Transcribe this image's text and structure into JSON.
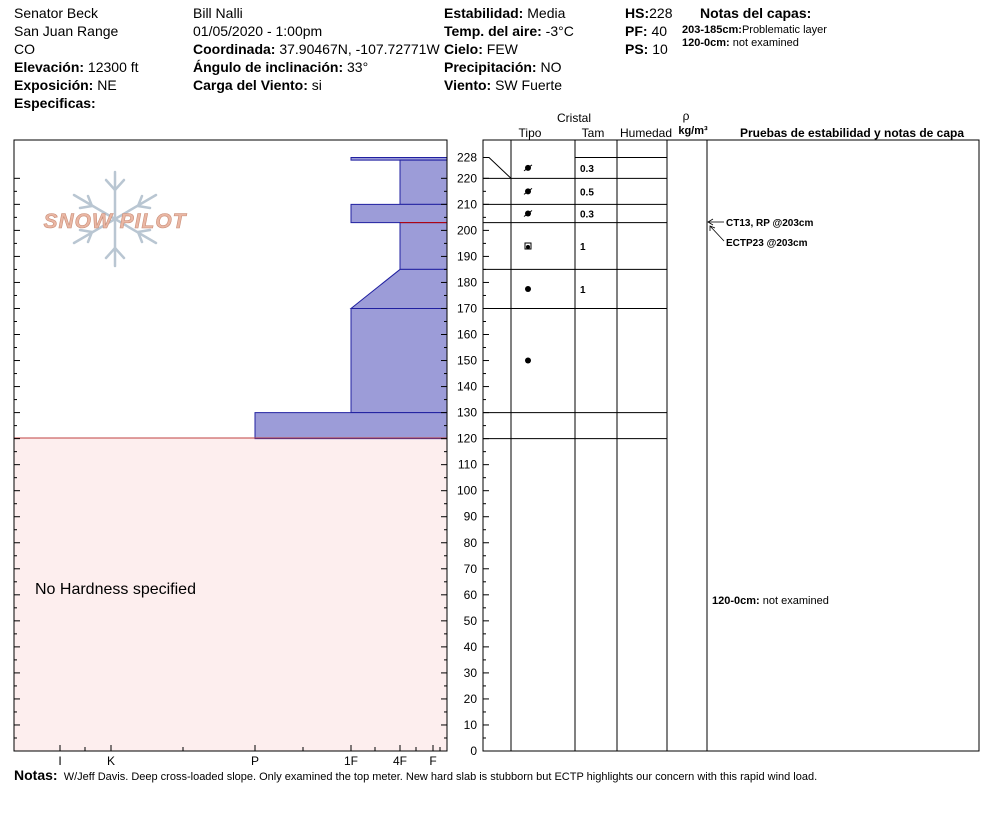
{
  "header": {
    "location": "Senator Beck",
    "range": "San Juan Range",
    "state": "CO",
    "elevation_label": "Elevación:",
    "elevation_value": "12300 ft",
    "aspect_label": "Exposición:",
    "aspect_value": "NE",
    "specifics_label": "Especificas:",
    "observer": "Bill Nalli",
    "datetime": "01/05/2020 - 1:00pm",
    "coord_label": "Coordinada:",
    "coord_value": "37.90467N, -107.72771W",
    "slope_label": "Ángulo de inclinación:",
    "slope_value": "33°",
    "windload_label": "Carga del Viento:",
    "windload_value": "si",
    "stability_label": "Estabilidad:",
    "stability_value": "Media",
    "airtemp_label": "Temp. del aire:",
    "airtemp_value": "-3°C",
    "sky_label": "Cielo:",
    "sky_value": "FEW",
    "precip_label": "Precipitación:",
    "precip_value": "NO",
    "wind_label": "Viento:",
    "wind_value": "SW Fuerte",
    "hs_label": "HS:",
    "hs_value": "228",
    "pf_label": "PF:",
    "pf_value": "40",
    "ps_label": "PS:",
    "ps_value": "10",
    "layer_notes_label": "Notas del capas:",
    "layer_notes": [
      {
        "range": "203-185cm:",
        "text": "Problematic layer"
      },
      {
        "range": "120-0cm:",
        "text": "not examined"
      }
    ]
  },
  "logo_text": "SNOW PILOT",
  "no_hardness_text": "No Hardness specified",
  "columns": {
    "cristal": "Cristal",
    "tipo": "Tipo",
    "tam": "Tam",
    "humedad": "Humedad",
    "rho": "ρ",
    "density_unit": "kg/m³",
    "tests_header": "Pruebas de estabilidad y notas de capa"
  },
  "chart_data": {
    "type": "area",
    "title": "",
    "xlabel": "",
    "ylabel": "",
    "y_range": [
      0,
      228
    ],
    "y_ticks_labeled": [
      0,
      10,
      20,
      30,
      40,
      50,
      60,
      70,
      80,
      90,
      100,
      110,
      120,
      130,
      140,
      150,
      160,
      170,
      180,
      190,
      200,
      210,
      220,
      228
    ],
    "hardness_scale": [
      "I",
      "K",
      "P",
      "1F",
      "4F",
      "F"
    ],
    "hardness_profile": [
      {
        "top": 228,
        "bottom": 227,
        "hardness": "1F"
      },
      {
        "top": 227,
        "bottom": 210,
        "hardness": "4F"
      },
      {
        "top": 210,
        "bottom": 203,
        "hardness": "1F"
      },
      {
        "top": 203,
        "bottom": 185,
        "hardness": "4F"
      },
      {
        "top": 185,
        "bottom": 170,
        "hardness_top": "4F",
        "hardness_bottom": "1F"
      },
      {
        "top": 170,
        "bottom": 130,
        "hardness": "1F"
      },
      {
        "top": 130,
        "bottom": 120,
        "hardness": "P"
      }
    ],
    "not_examined_range": [
      0,
      120
    ],
    "problem_layer_depth": 203,
    "layer_boundaries": [
      228,
      220,
      210,
      203,
      185,
      170,
      130,
      120
    ],
    "grain_layers": [
      {
        "top": 228,
        "bottom": 220,
        "size": "0.3",
        "symbol": "decomposed"
      },
      {
        "top": 220,
        "bottom": 210,
        "size": "0.5",
        "symbol": "decomposed"
      },
      {
        "top": 210,
        "bottom": 203,
        "size": "0.3",
        "symbol": "decomposed"
      },
      {
        "top": 203,
        "bottom": 185,
        "size": "1",
        "symbol": "mixed"
      },
      {
        "top": 185,
        "bottom": 170,
        "size": "1",
        "symbol": "rounded"
      },
      {
        "top": 170,
        "bottom": 130,
        "size": "",
        "symbol": "rounded"
      }
    ],
    "stability_tests": [
      {
        "text": "CT13, RP @203cm",
        "depth": 203
      },
      {
        "text": "ECTP23 @203cm",
        "depth": 203
      }
    ],
    "layer_note_in_chart": {
      "range": "120-0cm:",
      "text": "not examined",
      "depth": 60
    }
  },
  "notes": {
    "label": "Notas:",
    "text": "W/Jeff Davis. Deep cross-loaded slope. Only examined the top meter. New hard slab is stubborn but ECTP highlights our concern with this rapid wind load."
  },
  "colors": {
    "hardness_fill": "#9c9cd8",
    "hardness_stroke": "#2020a0",
    "not_examined_fill": "#fdeeee",
    "problem_line": "#c00000",
    "logo_text": "#eab7a4",
    "logo_flake": "#b9c6d2"
  }
}
